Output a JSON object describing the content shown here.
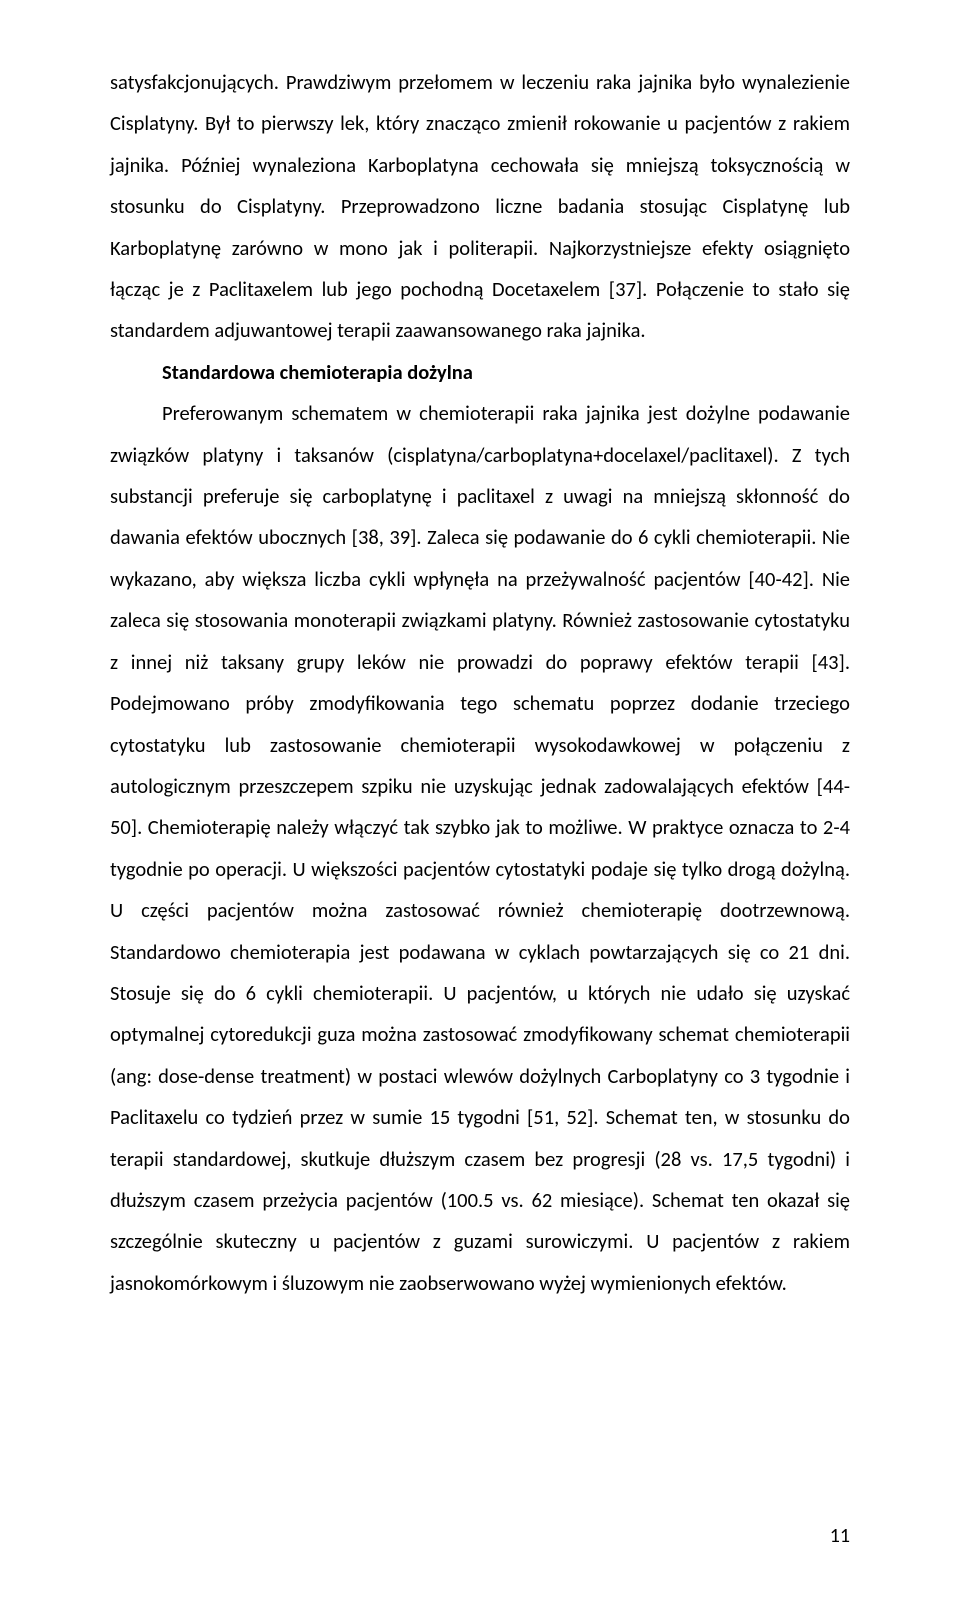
{
  "paragraphs": {
    "p1": "satysfakcjonujących. Prawdziwym przełomem w leczeniu raka jajnika było wynalezienie Cisplatyny. Był to pierwszy lek, który znacząco zmienił rokowanie u pacjentów z rakiem jajnika. Później wynaleziona Karboplatyna cechowała się mniejszą toksycznością w stosunku do Cisplatyny. Przeprowadzono liczne badania stosując Cisplatynę lub Karboplatynę zarówno w mono jak i politerapii. Najkorzystniejsze efekty osiągnięto łącząc je z Paclitaxelem lub jego pochodną Docetaxelem [37]. Połączenie to stało się standardem adjuwantowej terapii zaawansowanego raka jajnika.",
    "heading": "Standardowa chemioterapia dożylna",
    "p2": "Preferowanym schematem w chemioterapii raka jajnika jest dożylne podawanie związków platyny i taksanów (cisplatyna/carboplatyna+docelaxel/paclitaxel). Z tych substancji preferuje się carboplatynę i paclitaxel z uwagi na mniejszą skłonność do dawania efektów ubocznych [38, 39]. Zaleca się podawanie do 6 cykli chemioterapii. Nie wykazano, aby większa liczba cykli wpłynęła na przeżywalność pacjentów [40-42]. Nie zaleca się stosowania monoterapii związkami platyny. Również zastosowanie cytostatyku z innej niż taksany grupy leków nie prowadzi do poprawy efektów terapii [43]. Podejmowano próby zmodyfikowania tego schematu poprzez dodanie trzeciego cytostatyku lub zastosowanie chemioterapii wysokodawkowej w połączeniu z autologicznym przeszczepem szpiku nie uzyskując jednak zadowalających efektów [44-50]. Chemioterapię należy włączyć tak szybko jak to możliwe. W praktyce oznacza to 2-4 tygodnie po operacji. U większości pacjentów cytostatyki podaje się tylko drogą dożylną. U części pacjentów można zastosować również chemioterapię dootrzewnową. Standardowo chemioterapia jest podawana w cyklach powtarzających się co 21 dni. Stosuje się do 6 cykli chemioterapii. U pacjentów, u których nie udało się uzyskać optymalnej cytoredukcji guza można zastosować zmodyfikowany schemat chemioterapii (ang: dose-dense treatment) w postaci wlewów dożylnych Carboplatyny co 3 tygodnie i Paclitaxelu co tydzień przez w sumie 15 tygodni [51, 52]. Schemat ten, w stosunku do terapii standardowej, skutkuje dłuższym czasem bez progresji (28 vs. 17,5 tygodni) i dłuższym czasem przeżycia pacjentów (100.5 vs. 62 miesiące). Schemat ten okazał się szczególnie skuteczny u pacjentów z guzami surowiczymi. U pacjentów z rakiem jasnokomórkowym i śluzowym nie zaobserwowano wyżej wymienionych efektów."
  },
  "pageNumber": "11"
}
